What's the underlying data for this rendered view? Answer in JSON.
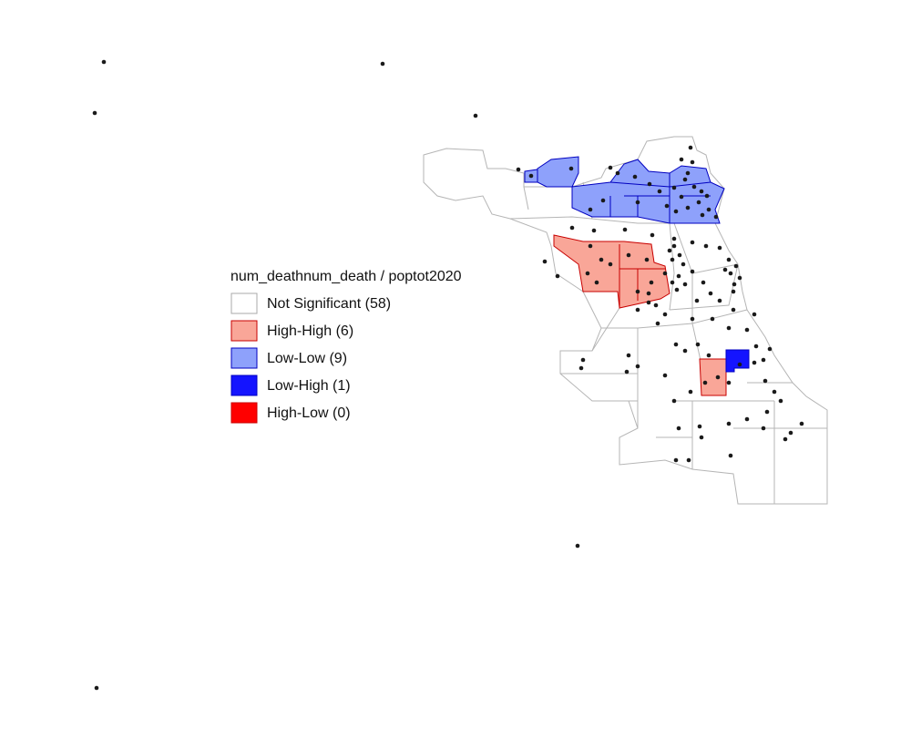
{
  "legend": {
    "title": "num_deathnum_death / poptot2020",
    "items": [
      {
        "label": "Not Significant (58)",
        "color": "#ffffff",
        "border": "#aaaaaa"
      },
      {
        "label": "High-High (6)",
        "color": "#f9a698",
        "border": "#c80000"
      },
      {
        "label": "Low-Low (9)",
        "color": "#8ea1fb",
        "border": "#0000c0"
      },
      {
        "label": "Low-High (1)",
        "color": "#1414ff",
        "border": "#0000c0"
      },
      {
        "label": "High-Low (0)",
        "color": "#ff0000",
        "border": "#c80000"
      }
    ]
  }
}
